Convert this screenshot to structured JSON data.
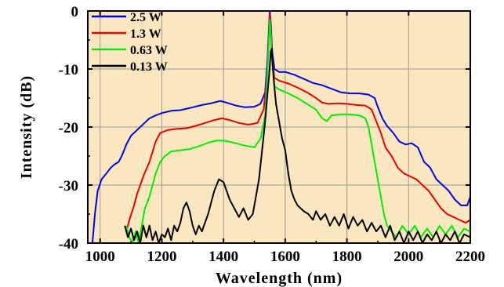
{
  "chart_data": {
    "type": "line",
    "title": "",
    "xlabel": "Wavelength (nm)",
    "ylabel": "Intensity (dB)",
    "xlim": [
      960,
      2200
    ],
    "ylim": [
      -40,
      0
    ],
    "xticks": [
      1000,
      1200,
      1400,
      1600,
      1800,
      2000,
      2200
    ],
    "yticks": [
      0,
      -10,
      -20,
      -30,
      -40
    ],
    "xtick_labels": [
      "1000",
      "1200",
      "1400",
      "1600",
      "1800",
      "2000",
      "2200"
    ],
    "ytick_labels": [
      "0",
      "-10",
      "-20",
      "-30",
      "-40"
    ],
    "grid": true,
    "background_color": "#fae6bf",
    "legend_position": "top-left",
    "series": [
      {
        "name": "2.5 W",
        "color": "#0000ee",
        "points": [
          [
            975,
            -40
          ],
          [
            983,
            -35
          ],
          [
            992,
            -31
          ],
          [
            1005,
            -29
          ],
          [
            1020,
            -28
          ],
          [
            1035,
            -27
          ],
          [
            1045,
            -26.5
          ],
          [
            1060,
            -26
          ],
          [
            1070,
            -25
          ],
          [
            1085,
            -23
          ],
          [
            1100,
            -21.5
          ],
          [
            1120,
            -20.5
          ],
          [
            1140,
            -19.5
          ],
          [
            1160,
            -18.5
          ],
          [
            1180,
            -18
          ],
          [
            1200,
            -17.6
          ],
          [
            1230,
            -17.2
          ],
          [
            1260,
            -17.1
          ],
          [
            1300,
            -16.6
          ],
          [
            1330,
            -16.2
          ],
          [
            1360,
            -15.9
          ],
          [
            1390,
            -15.5
          ],
          [
            1410,
            -15.8
          ],
          [
            1440,
            -16.3
          ],
          [
            1470,
            -16.6
          ],
          [
            1500,
            -16.5
          ],
          [
            1520,
            -16
          ],
          [
            1535,
            -14
          ],
          [
            1543,
            -8
          ],
          [
            1548,
            -2
          ],
          [
            1550,
            0
          ],
          [
            1553,
            -2
          ],
          [
            1558,
            -7
          ],
          [
            1565,
            -10
          ],
          [
            1580,
            -10.5
          ],
          [
            1600,
            -10.5
          ],
          [
            1630,
            -11
          ],
          [
            1660,
            -11.7
          ],
          [
            1690,
            -12.4
          ],
          [
            1720,
            -12.8
          ],
          [
            1750,
            -13.4
          ],
          [
            1780,
            -14
          ],
          [
            1810,
            -14.2
          ],
          [
            1840,
            -14.2
          ],
          [
            1870,
            -14.4
          ],
          [
            1890,
            -15
          ],
          [
            1900,
            -16.5
          ],
          [
            1915,
            -18.5
          ],
          [
            1930,
            -19.8
          ],
          [
            1950,
            -21
          ],
          [
            1970,
            -22.5
          ],
          [
            1990,
            -23
          ],
          [
            2010,
            -22.8
          ],
          [
            2030,
            -23.5
          ],
          [
            2050,
            -26
          ],
          [
            2070,
            -27
          ],
          [
            2090,
            -29
          ],
          [
            2110,
            -30
          ],
          [
            2130,
            -31
          ],
          [
            2150,
            -32.5
          ],
          [
            2170,
            -33.5
          ],
          [
            2190,
            -33.5
          ],
          [
            2200,
            -32
          ]
        ]
      },
      {
        "name": "1.3 W",
        "color": "#ee0000",
        "points": [
          [
            1085,
            -38
          ],
          [
            1095,
            -36
          ],
          [
            1110,
            -33.5
          ],
          [
            1120,
            -31.5
          ],
          [
            1140,
            -28.5
          ],
          [
            1160,
            -26
          ],
          [
            1180,
            -22.5
          ],
          [
            1195,
            -21
          ],
          [
            1220,
            -20.5
          ],
          [
            1250,
            -20.3
          ],
          [
            1280,
            -20.2
          ],
          [
            1310,
            -19.8
          ],
          [
            1340,
            -19.3
          ],
          [
            1370,
            -18.8
          ],
          [
            1395,
            -18.5
          ],
          [
            1420,
            -18.8
          ],
          [
            1450,
            -19.3
          ],
          [
            1480,
            -19.6
          ],
          [
            1510,
            -19.3
          ],
          [
            1530,
            -17
          ],
          [
            1540,
            -12
          ],
          [
            1546,
            -6
          ],
          [
            1550,
            -0.5
          ],
          [
            1553,
            -3
          ],
          [
            1558,
            -8
          ],
          [
            1565,
            -11.5
          ],
          [
            1580,
            -12
          ],
          [
            1610,
            -12.5
          ],
          [
            1640,
            -13.2
          ],
          [
            1670,
            -14
          ],
          [
            1700,
            -15
          ],
          [
            1720,
            -15.8
          ],
          [
            1740,
            -16
          ],
          [
            1770,
            -15.9
          ],
          [
            1800,
            -16
          ],
          [
            1830,
            -16.2
          ],
          [
            1860,
            -16.3
          ],
          [
            1880,
            -17
          ],
          [
            1895,
            -19
          ],
          [
            1910,
            -21
          ],
          [
            1925,
            -23.5
          ],
          [
            1945,
            -25
          ],
          [
            1965,
            -27
          ],
          [
            1985,
            -28
          ],
          [
            2005,
            -28.5
          ],
          [
            2025,
            -29
          ],
          [
            2045,
            -30
          ],
          [
            2065,
            -31
          ],
          [
            2085,
            -32.5
          ],
          [
            2105,
            -34
          ],
          [
            2125,
            -35
          ],
          [
            2145,
            -35.5
          ],
          [
            2165,
            -36
          ],
          [
            2185,
            -36.5
          ],
          [
            2200,
            -36
          ]
        ]
      },
      {
        "name": "0.63 W",
        "color": "#00ee00",
        "points": [
          [
            1085,
            -37
          ],
          [
            1095,
            -39
          ],
          [
            1105,
            -40
          ],
          [
            1115,
            -38
          ],
          [
            1125,
            -40
          ],
          [
            1135,
            -37
          ],
          [
            1145,
            -34
          ],
          [
            1160,
            -32
          ],
          [
            1180,
            -28
          ],
          [
            1195,
            -26
          ],
          [
            1210,
            -25
          ],
          [
            1230,
            -24.2
          ],
          [
            1260,
            -24
          ],
          [
            1290,
            -23.8
          ],
          [
            1320,
            -23.3
          ],
          [
            1350,
            -22.7
          ],
          [
            1380,
            -22.3
          ],
          [
            1410,
            -22.4
          ],
          [
            1440,
            -22.8
          ],
          [
            1470,
            -23.2
          ],
          [
            1500,
            -23.5
          ],
          [
            1520,
            -22
          ],
          [
            1535,
            -18
          ],
          [
            1543,
            -10
          ],
          [
            1548,
            -4
          ],
          [
            1550,
            -1.5
          ],
          [
            1553,
            -4
          ],
          [
            1558,
            -9
          ],
          [
            1566,
            -13
          ],
          [
            1580,
            -13.5
          ],
          [
            1610,
            -14.2
          ],
          [
            1640,
            -15
          ],
          [
            1670,
            -16
          ],
          [
            1700,
            -17
          ],
          [
            1720,
            -18.5
          ],
          [
            1735,
            -19
          ],
          [
            1750,
            -18
          ],
          [
            1780,
            -17.8
          ],
          [
            1810,
            -17.8
          ],
          [
            1840,
            -18
          ],
          [
            1860,
            -18.5
          ],
          [
            1870,
            -20
          ],
          [
            1880,
            -23
          ],
          [
            1890,
            -26
          ],
          [
            1900,
            -29
          ],
          [
            1910,
            -32
          ],
          [
            1920,
            -35
          ],
          [
            1930,
            -37
          ],
          [
            1945,
            -38
          ],
          [
            1960,
            -39
          ],
          [
            1980,
            -37
          ],
          [
            2000,
            -38.5
          ],
          [
            2020,
            -37
          ],
          [
            2040,
            -39
          ],
          [
            2060,
            -37.5
          ],
          [
            2080,
            -39
          ],
          [
            2100,
            -37
          ],
          [
            2120,
            -38.5
          ],
          [
            2140,
            -37
          ],
          [
            2160,
            -39
          ],
          [
            2180,
            -37.5
          ],
          [
            2200,
            -38
          ]
        ]
      },
      {
        "name": "0.13 W",
        "color": "#000000",
        "points": [
          [
            1080,
            -37
          ],
          [
            1090,
            -39
          ],
          [
            1100,
            -37.5
          ],
          [
            1110,
            -39.5
          ],
          [
            1120,
            -38
          ],
          [
            1130,
            -40
          ],
          [
            1140,
            -37
          ],
          [
            1150,
            -39
          ],
          [
            1160,
            -37
          ],
          [
            1170,
            -39.5
          ],
          [
            1180,
            -38
          ],
          [
            1190,
            -40
          ],
          [
            1200,
            -38.5
          ],
          [
            1210,
            -39
          ],
          [
            1220,
            -37.5
          ],
          [
            1230,
            -39.5
          ],
          [
            1240,
            -37
          ],
          [
            1250,
            -38
          ],
          [
            1260,
            -36.5
          ],
          [
            1270,
            -34
          ],
          [
            1280,
            -33
          ],
          [
            1290,
            -34.5
          ],
          [
            1300,
            -37
          ],
          [
            1310,
            -38.5
          ],
          [
            1320,
            -37
          ],
          [
            1330,
            -38
          ],
          [
            1340,
            -36.5
          ],
          [
            1350,
            -35
          ],
          [
            1360,
            -33
          ],
          [
            1370,
            -31
          ],
          [
            1385,
            -29
          ],
          [
            1400,
            -29.5
          ],
          [
            1410,
            -31
          ],
          [
            1420,
            -32.5
          ],
          [
            1435,
            -34
          ],
          [
            1450,
            -35.5
          ],
          [
            1465,
            -34
          ],
          [
            1480,
            -36
          ],
          [
            1495,
            -35
          ],
          [
            1505,
            -32
          ],
          [
            1515,
            -29
          ],
          [
            1525,
            -24
          ],
          [
            1535,
            -19
          ],
          [
            1543,
            -14
          ],
          [
            1548,
            -11
          ],
          [
            1550,
            -9.5
          ],
          [
            1553,
            -7
          ],
          [
            1556,
            -6.5
          ],
          [
            1559,
            -9
          ],
          [
            1563,
            -12
          ],
          [
            1570,
            -16
          ],
          [
            1580,
            -19
          ],
          [
            1590,
            -22
          ],
          [
            1600,
            -24
          ],
          [
            1610,
            -28
          ],
          [
            1620,
            -31
          ],
          [
            1630,
            -32.5
          ],
          [
            1640,
            -33.5
          ],
          [
            1650,
            -34
          ],
          [
            1660,
            -34.5
          ],
          [
            1675,
            -35
          ],
          [
            1690,
            -36
          ],
          [
            1700,
            -34.5
          ],
          [
            1715,
            -36
          ],
          [
            1730,
            -35
          ],
          [
            1745,
            -37
          ],
          [
            1760,
            -35.5
          ],
          [
            1775,
            -37
          ],
          [
            1790,
            -35
          ],
          [
            1805,
            -37.5
          ],
          [
            1820,
            -35.5
          ],
          [
            1835,
            -37
          ],
          [
            1850,
            -36
          ],
          [
            1865,
            -38
          ],
          [
            1880,
            -36.5
          ],
          [
            1895,
            -38
          ],
          [
            1910,
            -37
          ],
          [
            1925,
            -39
          ],
          [
            1940,
            -37
          ],
          [
            1955,
            -39.5
          ],
          [
            1970,
            -38
          ],
          [
            1985,
            -40
          ],
          [
            2000,
            -38
          ],
          [
            2015,
            -39.5
          ],
          [
            2030,
            -38
          ],
          [
            2045,
            -40
          ],
          [
            2060,
            -38.5
          ],
          [
            2075,
            -39.5
          ],
          [
            2090,
            -38
          ],
          [
            2105,
            -40
          ],
          [
            2120,
            -38.5
          ],
          [
            2135,
            -39.5
          ],
          [
            2150,
            -38
          ],
          [
            2165,
            -40
          ],
          [
            2180,
            -38.5
          ],
          [
            2200,
            -39
          ]
        ]
      }
    ]
  }
}
